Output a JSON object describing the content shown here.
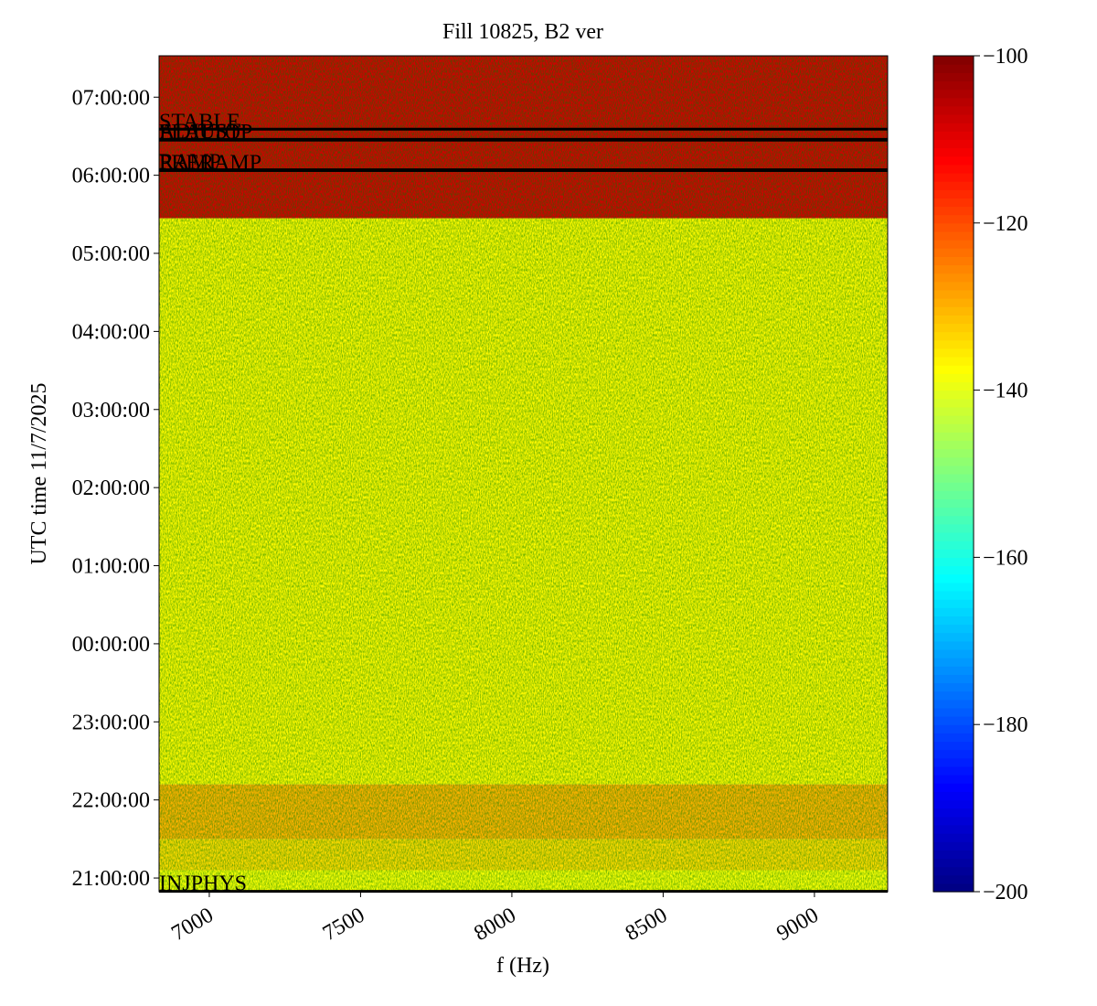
{
  "chart_data": {
    "type": "spectrogram",
    "title": "Fill 10825, B2 ver",
    "xlabel": "f (Hz)",
    "ylabel": "UTC time 11/7/2025",
    "xlim": [
      6834,
      9242
    ],
    "xticks": [
      7000,
      7500,
      8000,
      8500,
      9000
    ],
    "ylim": [
      20.825,
      31.53
    ],
    "yticks": [
      {
        "value": 21,
        "label": "21:00:00"
      },
      {
        "value": 22,
        "label": "22:00:00"
      },
      {
        "value": 23,
        "label": "23:00:00"
      },
      {
        "value": 24,
        "label": "00:00:00"
      },
      {
        "value": 25,
        "label": "01:00:00"
      },
      {
        "value": 26,
        "label": "02:00:00"
      },
      {
        "value": 27,
        "label": "03:00:00"
      },
      {
        "value": 28,
        "label": "04:00:00"
      },
      {
        "value": 29,
        "label": "05:00:00"
      },
      {
        "value": 30,
        "label": "06:00:00"
      },
      {
        "value": 31,
        "label": "07:00:00"
      }
    ],
    "colormap": "jet",
    "clim": [
      -200,
      -100
    ],
    "cticks": [
      {
        "value": -200,
        "label": "−200"
      },
      {
        "value": -180,
        "label": "−180"
      },
      {
        "value": -160,
        "label": "−160"
      },
      {
        "value": -140,
        "label": "−140"
      },
      {
        "value": -120,
        "label": "−120"
      },
      {
        "value": -100,
        "label": "−100"
      }
    ],
    "bands": [
      {
        "start": 20.825,
        "end": 21.1,
        "level": -138
      },
      {
        "start": 21.1,
        "end": 21.5,
        "level": -134
      },
      {
        "start": 21.5,
        "end": 22.2,
        "level": -130
      },
      {
        "start": 22.2,
        "end": 29.45,
        "level": -137
      },
      {
        "start": 29.45,
        "end": 31.53,
        "level": -108
      }
    ],
    "events": [
      {
        "name": "INJPHYS",
        "time": 20.83
      },
      {
        "name": "PRERAMP",
        "time": 30.06
      },
      {
        "name": "RAMP",
        "time": 30.07
      },
      {
        "name": "FLATTOP",
        "time": 30.45
      },
      {
        "name": "ADJUST",
        "time": 30.46
      },
      {
        "name": "STABLE",
        "time": 30.59
      }
    ]
  }
}
